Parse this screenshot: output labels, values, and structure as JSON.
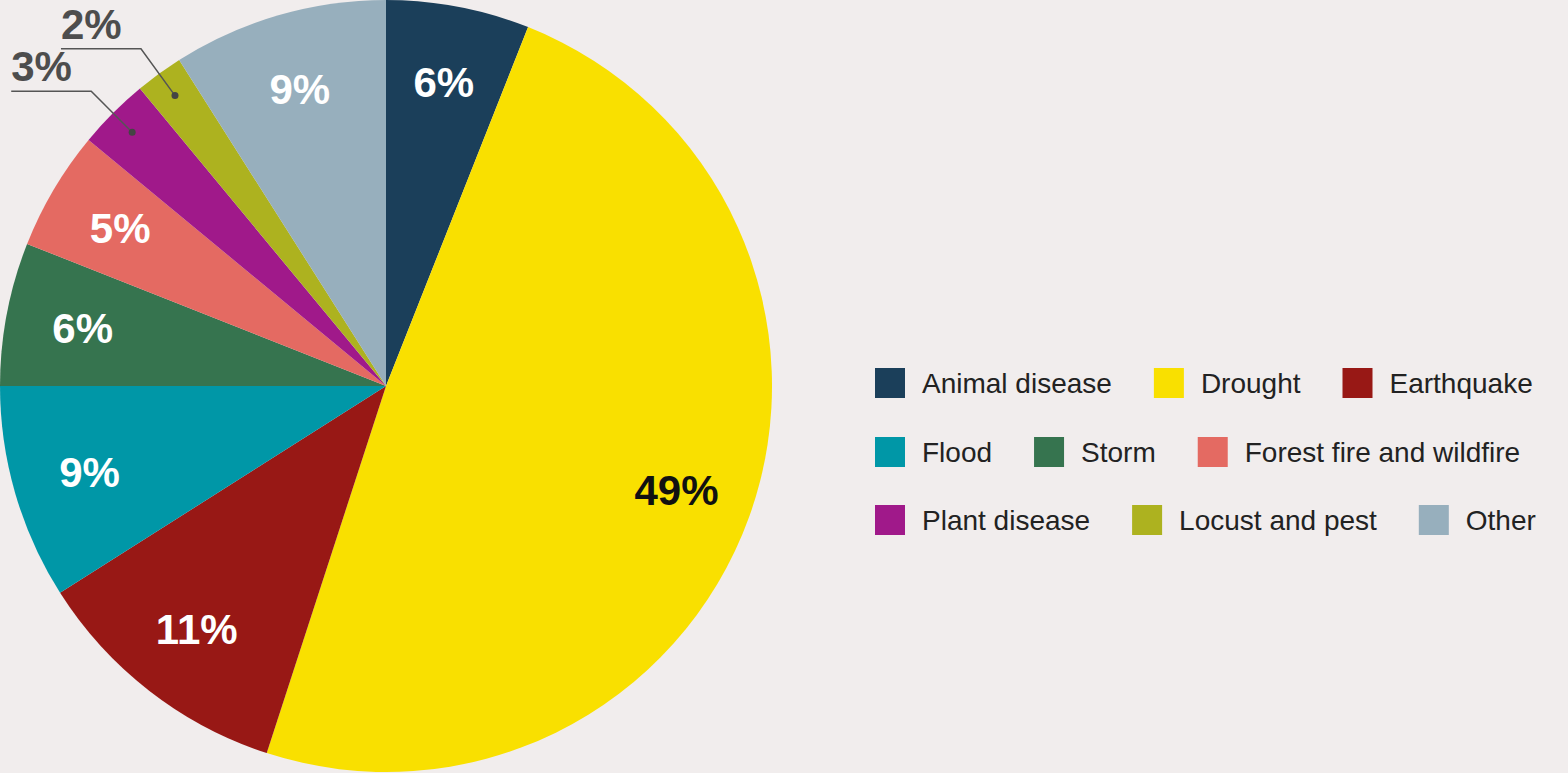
{
  "chart_data": {
    "type": "pie",
    "categories": [
      "Animal disease",
      "Drought",
      "Earthquake",
      "Flood",
      "Storm",
      "Forest fire and wildfire",
      "Plant disease",
      "Locust and pest",
      "Other"
    ],
    "values": [
      6,
      49,
      11,
      9,
      6,
      5,
      3,
      2,
      9
    ],
    "value_labels": [
      "6%",
      "49%",
      "11%",
      "9%",
      "6%",
      "5%",
      "3%",
      "2%",
      "9%"
    ],
    "colors": [
      "#1b3f5a",
      "#f9e000",
      "#981815",
      "#0097a7",
      "#36744f",
      "#e46a62",
      "#a0198a",
      "#adb21f",
      "#97afbd"
    ],
    "data_labels": true,
    "legend": "right"
  }
}
